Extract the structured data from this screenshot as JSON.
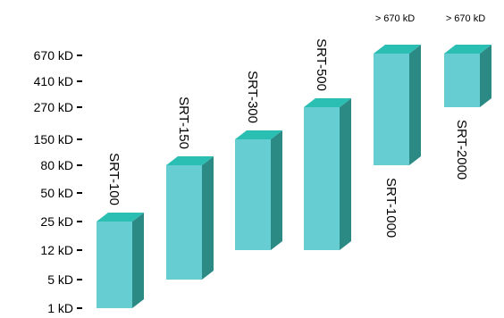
{
  "chart_data": {
    "type": "bar",
    "style": "3d-floating-range",
    "y_axis": {
      "scale": "categorical-log",
      "ticks": [
        "1 kD",
        "5 kD",
        "12 kD",
        "25 kD",
        "50 kD",
        "80 kD",
        "150 kD",
        "270 kD",
        "410 kD",
        "670 kD"
      ]
    },
    "series": [
      {
        "name": "SRT-100",
        "low": "1 kD",
        "high": "25 kD",
        "label": "SRT-100",
        "top_label": ""
      },
      {
        "name": "SRT-150",
        "low": "5 kD",
        "high": "80 kD",
        "label": "SRT-150",
        "top_label": ""
      },
      {
        "name": "SRT-300",
        "low": "12 kD",
        "high": "150 kD",
        "label": "SRT-300",
        "top_label": ""
      },
      {
        "name": "SRT-500",
        "low": "12 kD",
        "high": "270 kD",
        "label": "SRT-500",
        "top_label": ""
      },
      {
        "name": "SRT-1000",
        "low": "80 kD",
        "high": "> 670 kD",
        "label": "SRT-1000",
        "top_label": "> 670 kD"
      },
      {
        "name": "SRT-2000",
        "low": "270 kD",
        "high": "> 670 kD",
        "label": "SRT-2000",
        "top_label": "> 670 kD"
      }
    ],
    "colors": {
      "front": "#66cdd3",
      "top": "#2bbfb4",
      "side": "#2c8a85"
    }
  }
}
